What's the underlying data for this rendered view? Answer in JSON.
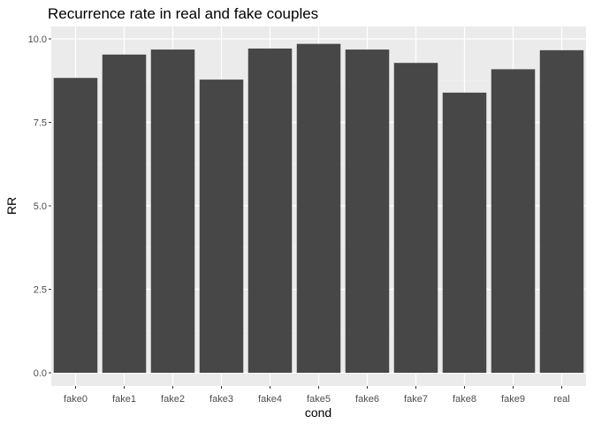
{
  "chart_data": {
    "type": "bar",
    "title": "Recurrence rate in real and fake couples",
    "xlabel": "cond",
    "ylabel": "RR",
    "categories": [
      "fake0",
      "fake1",
      "fake2",
      "fake3",
      "fake4",
      "fake5",
      "fake6",
      "fake7",
      "fake8",
      "fake9",
      "real"
    ],
    "values": [
      8.83,
      9.53,
      9.68,
      8.78,
      9.71,
      9.85,
      9.68,
      9.28,
      8.39,
      9.09,
      9.66
    ],
    "ylim": [
      0,
      10.4
    ],
    "yticks": [
      0.0,
      2.5,
      5.0,
      7.5,
      10.0
    ],
    "ytick_labels": [
      "0.0",
      "2.5",
      "5.0",
      "7.5",
      "10.0"
    ],
    "grid": true,
    "legend": "none",
    "colors": {
      "bar": "#474747",
      "panel": "#ebebeb",
      "grid_major": "#ffffff",
      "grid_minor": "#f5f5f5"
    }
  }
}
